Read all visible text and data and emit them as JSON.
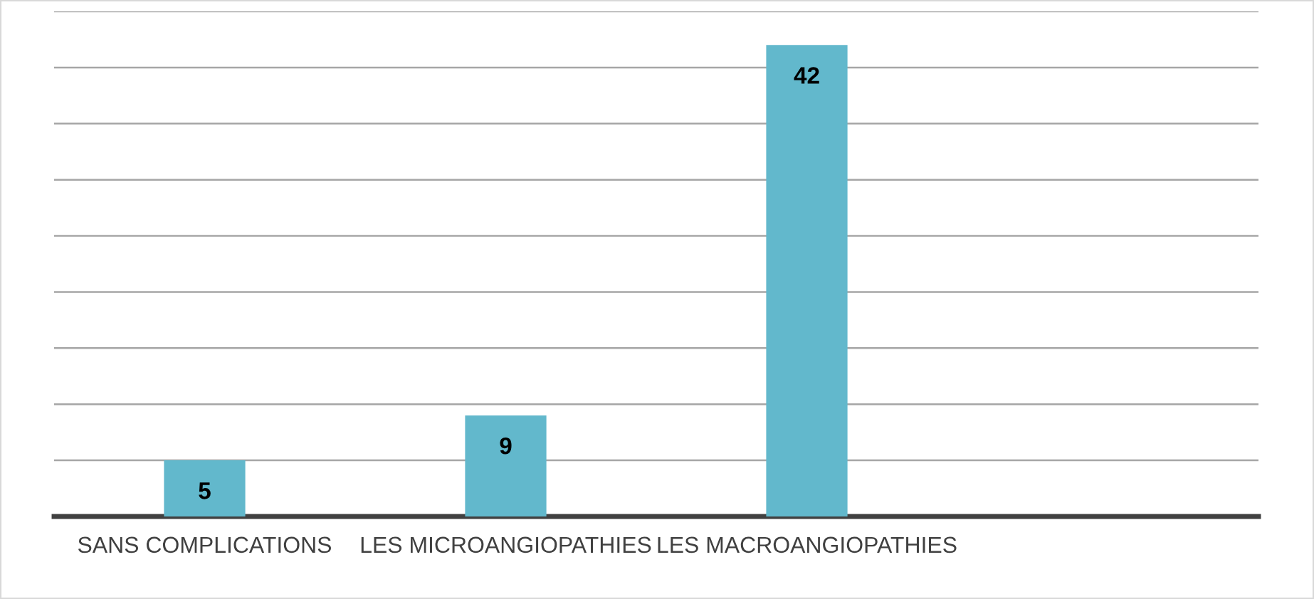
{
  "chart_data": {
    "type": "bar",
    "categories": [
      "SANS COMPLICATIONS",
      "LES MICROANGIOPATHIES",
      "LES MACROANGIOPATHIES",
      null
    ],
    "values": [
      5,
      9,
      42,
      null
    ],
    "color": "#62b8cc",
    "ylim": [
      0,
      45
    ],
    "yticks": [
      {
        "value": 5,
        "label": null
      },
      {
        "value": 10,
        "label": null
      },
      {
        "value": 15,
        "label": null
      },
      {
        "value": 20,
        "label": null
      },
      {
        "value": 25,
        "label": null
      },
      {
        "value": 30,
        "label": null
      },
      {
        "value": 35,
        "label": null
      },
      {
        "value": 40,
        "label": null
      },
      {
        "value": 45,
        "label": null
      }
    ],
    "grid": "y",
    "tick_labels": "x",
    "data_labels": true
  }
}
